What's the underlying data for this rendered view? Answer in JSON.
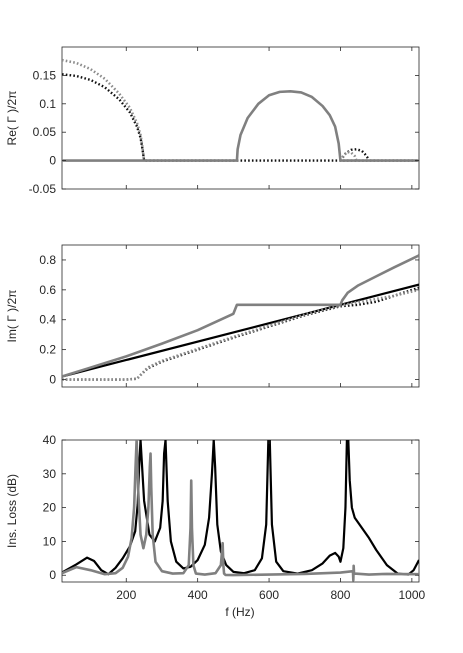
{
  "chart_data": [
    {
      "type": "line",
      "ylabel": "Re( Γ )/2π",
      "xlabel": "",
      "xlim": [
        20,
        1020
      ],
      "ylim": [
        -0.05,
        0.2
      ],
      "yticks": [
        "0.15",
        "0.1",
        "0.05",
        "0",
        "-0.05"
      ],
      "ytick_values": [
        0.15,
        0.1,
        0.05,
        0,
        -0.05
      ],
      "xtick_values": [
        200,
        400,
        600,
        800,
        1000
      ],
      "xticks": [
        "",
        "",
        "",
        "",
        ""
      ],
      "grid": false,
      "series": [
        {
          "style": "black-dotted",
          "color": "#111111",
          "x": [
            20,
            60,
            100,
            140,
            180,
            210,
            230,
            240,
            245,
            250,
            1020
          ],
          "y": [
            0.152,
            0.149,
            0.142,
            0.129,
            0.108,
            0.085,
            0.06,
            0.04,
            0.022,
            0.0,
            0.0
          ]
        },
        {
          "style": "black-dotted",
          "color": "#111111",
          "x": [
            800,
            815,
            830,
            845,
            860,
            868,
            875,
            880
          ],
          "y": [
            0.0,
            0.013,
            0.019,
            0.02,
            0.017,
            0.012,
            0.006,
            0.0
          ]
        },
        {
          "style": "gray-dotted",
          "color": "#8c8c8c",
          "x": [
            20,
            60,
            100,
            140,
            180,
            210,
            230,
            240,
            245,
            250
          ],
          "y": [
            0.177,
            0.172,
            0.161,
            0.144,
            0.118,
            0.093,
            0.066,
            0.045,
            0.025,
            0.0
          ]
        },
        {
          "style": "gray-dotted",
          "color": "#8c8c8c",
          "x": [
            800,
            810,
            820,
            830,
            840,
            845
          ],
          "y": [
            0.0,
            0.01,
            0.015,
            0.014,
            0.008,
            0.0
          ]
        },
        {
          "style": "gray-solid",
          "color": "#808080",
          "x": [
            20,
            510,
            512,
            520,
            540,
            570,
            600,
            630,
            660,
            690,
            720,
            750,
            770,
            785,
            795,
            800,
            1020
          ],
          "y": [
            0.0,
            0.0,
            0.02,
            0.045,
            0.075,
            0.1,
            0.115,
            0.121,
            0.122,
            0.12,
            0.112,
            0.096,
            0.08,
            0.06,
            0.03,
            0.0,
            0.0
          ]
        }
      ]
    },
    {
      "type": "line",
      "ylabel": "Im( Γ )/2π",
      "xlabel": "",
      "xlim": [
        20,
        1020
      ],
      "ylim": [
        -0.05,
        0.9
      ],
      "yticks": [
        "0.8",
        "0.6",
        "0.4",
        "0.2",
        "0"
      ],
      "ytick_values": [
        0.8,
        0.6,
        0.4,
        0.2,
        0
      ],
      "xtick_values": [
        200,
        400,
        600,
        800,
        1000
      ],
      "xticks": [
        "",
        "",
        "",
        "",
        ""
      ],
      "grid": false,
      "series": [
        {
          "style": "black-solid",
          "color": "#000000",
          "x": [
            20,
            1020
          ],
          "y": [
            0.02,
            0.635
          ]
        },
        {
          "style": "black-dotted",
          "color": "#111111",
          "x": [
            20,
            200,
            230,
            240,
            260,
            300,
            400,
            500,
            600,
            700,
            800,
            850,
            900,
            950,
            1020
          ],
          "y": [
            0.0,
            0.0,
            0.005,
            0.03,
            0.075,
            0.12,
            0.2,
            0.28,
            0.355,
            0.43,
            0.49,
            0.5,
            0.52,
            0.56,
            0.615
          ]
        },
        {
          "style": "gray-dotted",
          "color": "#8c8c8c",
          "x": [
            20,
            200,
            230,
            240,
            260,
            300,
            400,
            500,
            600,
            700,
            800,
            840,
            880,
            950,
            1020
          ],
          "y": [
            0.0,
            0.0,
            0.005,
            0.03,
            0.08,
            0.125,
            0.205,
            0.285,
            0.36,
            0.435,
            0.495,
            0.515,
            0.53,
            0.56,
            0.6
          ]
        },
        {
          "style": "gray-solid",
          "color": "#808080",
          "x": [
            20,
            100,
            200,
            300,
            400,
            500,
            510,
            800,
            805,
            820,
            850,
            900,
            950,
            1020
          ],
          "y": [
            0.02,
            0.08,
            0.155,
            0.24,
            0.33,
            0.44,
            0.5,
            0.5,
            0.53,
            0.58,
            0.63,
            0.69,
            0.75,
            0.83
          ]
        }
      ]
    },
    {
      "type": "line",
      "ylabel": "Ins. Loss (dB)",
      "xlabel": "f (Hz)",
      "xlim": [
        20,
        1020
      ],
      "ylim": [
        -2,
        40
      ],
      "yticks": [
        "40",
        "30",
        "20",
        "10",
        "0"
      ],
      "ytick_values": [
        40,
        30,
        20,
        10,
        0
      ],
      "xtick_values": [
        200,
        400,
        600,
        800,
        1000
      ],
      "xticks": [
        "200",
        "400",
        "600",
        "800",
        "1000"
      ],
      "grid": false,
      "series": [
        {
          "style": "black-solid",
          "color": "#000000",
          "x": [
            20,
            60,
            90,
            110,
            130,
            150,
            170,
            190,
            210,
            225,
            232,
            236,
            240,
            250,
            265,
            280,
            295,
            302,
            306,
            310,
            316,
            325,
            340,
            360,
            380,
            400,
            420,
            432,
            440,
            445,
            449,
            455,
            465,
            480,
            500,
            530,
            560,
            580,
            592,
            598,
            602,
            608,
            620,
            640,
            680,
            720,
            750,
            770,
            785,
            795,
            800,
            808,
            814,
            818,
            822,
            826,
            832,
            840,
            860,
            880,
            900,
            930,
            960,
            990,
            1005,
            1020
          ],
          "y": [
            0.8,
            3.2,
            5.2,
            4.2,
            1.5,
            0.3,
            2.2,
            5.0,
            8.5,
            13,
            21,
            32,
            40,
            22,
            12,
            10,
            14,
            22,
            36,
            40,
            22,
            10,
            4,
            2,
            2.5,
            4.5,
            9,
            17,
            30,
            40,
            32,
            15,
            7,
            3,
            1,
            0.6,
            1.5,
            5,
            15,
            40,
            40,
            15,
            4,
            1.2,
            0.5,
            1.5,
            3.5,
            5.8,
            6.6,
            5.5,
            4,
            8,
            20,
            40,
            40,
            28,
            20,
            17,
            14,
            11,
            7.5,
            3,
            0.5,
            0.2,
            1.5,
            4.5
          ]
        },
        {
          "style": "gray-solid",
          "color": "#808080",
          "x": [
            20,
            60,
            100,
            140,
            170,
            190,
            205,
            215,
            222,
            226,
            229,
            233,
            240,
            248,
            256,
            262,
            266,
            268,
            270,
            274,
            282,
            300,
            330,
            360,
            375,
            380,
            382,
            384,
            388,
            395,
            420,
            450,
            465,
            470,
            472,
            474,
            478,
            500,
            600,
            700,
            800,
            835,
            836,
            837,
            838,
            840,
            880,
            930,
            1020
          ],
          "y": [
            0.6,
            2.4,
            1.5,
            0.3,
            0.6,
            2.2,
            5.5,
            11,
            20,
            32,
            40,
            26,
            12,
            8,
            12,
            20,
            32,
            36,
            26,
            12,
            4,
            1.2,
            0.5,
            0.6,
            3,
            14,
            28,
            14,
            3,
            0.5,
            0.2,
            0.6,
            3,
            9.5,
            3,
            0.5,
            0.1,
            0.05,
            0.2,
            0.4,
            0.8,
            1.2,
            -1.5,
            2.8,
            0.5,
            0.5,
            0.2,
            0.4,
            0.3
          ]
        }
      ]
    }
  ]
}
